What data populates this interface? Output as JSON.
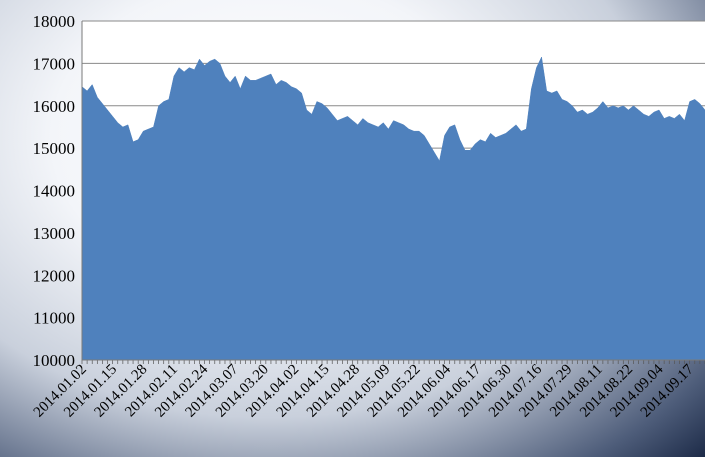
{
  "chart_data": {
    "type": "area",
    "title": "",
    "xlabel": "",
    "ylabel": "",
    "ylim": [
      10000,
      18000
    ],
    "y_ticks": [
      10000,
      11000,
      12000,
      13000,
      14000,
      15000,
      16000,
      17000,
      18000
    ],
    "x_tick_labels": [
      "2014.01.02",
      "2014.01.15",
      "2014.01.28",
      "2014.02.11",
      "2014.02.24",
      "2014.03.07",
      "2014.03.20",
      "2014.04.02",
      "2014.04.15",
      "2014.04.28",
      "2014.05.09",
      "2014.05.22",
      "2014.06.04",
      "2014.06.17",
      "2014.06.30",
      "2014.07.16",
      "2014.07.29",
      "2014.08.11",
      "2014.08.22",
      "2014.09.04",
      "2014.09.17"
    ],
    "grid": "horizontal",
    "fill_color": "#4f81bd",
    "series": [
      {
        "values": [
          16450,
          16350,
          16500,
          16200,
          16050,
          15900,
          15750,
          15600,
          15500,
          15550,
          15150,
          15200,
          15400,
          15450,
          15500,
          16000,
          16100,
          16150,
          16700,
          16900,
          16800,
          16900,
          16850,
          17100,
          16950,
          17050,
          17100,
          17000,
          16700,
          16550,
          16700,
          16400,
          16700,
          16600,
          16600,
          16650,
          16700,
          16750,
          16500,
          16600,
          16550,
          16450,
          16400,
          16300,
          15900,
          15800,
          16100,
          16050,
          15950,
          15800,
          15650,
          15700,
          15750,
          15650,
          15550,
          15700,
          15600,
          15550,
          15500,
          15600,
          15450,
          15650,
          15600,
          15550,
          15450,
          15400,
          15400,
          15300,
          15100,
          14900,
          14700,
          15300,
          15500,
          15550,
          15200,
          14950,
          14950,
          15100,
          15200,
          15150,
          15350,
          15250,
          15300,
          15350,
          15450,
          15550,
          15400,
          15450,
          16400,
          16900,
          17150,
          16350,
          16300,
          16350,
          16150,
          16100,
          16000,
          15850,
          15900,
          15800,
          15850,
          15950,
          16100,
          15950,
          16000,
          15950,
          16000,
          15900,
          16000,
          15900,
          15800,
          15750,
          15850,
          15900,
          15700,
          15750,
          15700,
          15800,
          15650,
          16100,
          16150,
          16050,
          15900
        ]
      }
    ]
  }
}
